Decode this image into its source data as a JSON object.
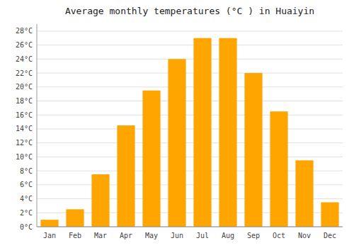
{
  "chart_data": {
    "type": "bar",
    "title": "Average monthly temperatures (°C ) in Huaiyin",
    "categories": [
      "Jan",
      "Feb",
      "Mar",
      "Apr",
      "May",
      "Jun",
      "Jul",
      "Aug",
      "Sep",
      "Oct",
      "Nov",
      "Dec"
    ],
    "values": [
      1.0,
      2.5,
      7.5,
      14.5,
      19.5,
      24.0,
      27.0,
      27.0,
      22.0,
      16.5,
      9.5,
      3.5
    ],
    "color": "#FFA500",
    "ylim": [
      0,
      29
    ],
    "yticks": [
      {
        "value": 0,
        "label": "0°C"
      },
      {
        "value": 2,
        "label": "2°C"
      },
      {
        "value": 4,
        "label": "4°C"
      },
      {
        "value": 6,
        "label": "6°C"
      },
      {
        "value": 8,
        "label": "8°C"
      },
      {
        "value": 10,
        "label": "10°C"
      },
      {
        "value": 12,
        "label": "12°C"
      },
      {
        "value": 14,
        "label": "14°C"
      },
      {
        "value": 16,
        "label": "16°C"
      },
      {
        "value": 18,
        "label": "18°C"
      },
      {
        "value": 20,
        "label": "20°C"
      },
      {
        "value": 22,
        "label": "22°C"
      },
      {
        "value": 24,
        "label": "24°C"
      },
      {
        "value": 26,
        "label": "26°C"
      },
      {
        "value": 28,
        "label": "28°C"
      }
    ],
    "grid": true
  }
}
